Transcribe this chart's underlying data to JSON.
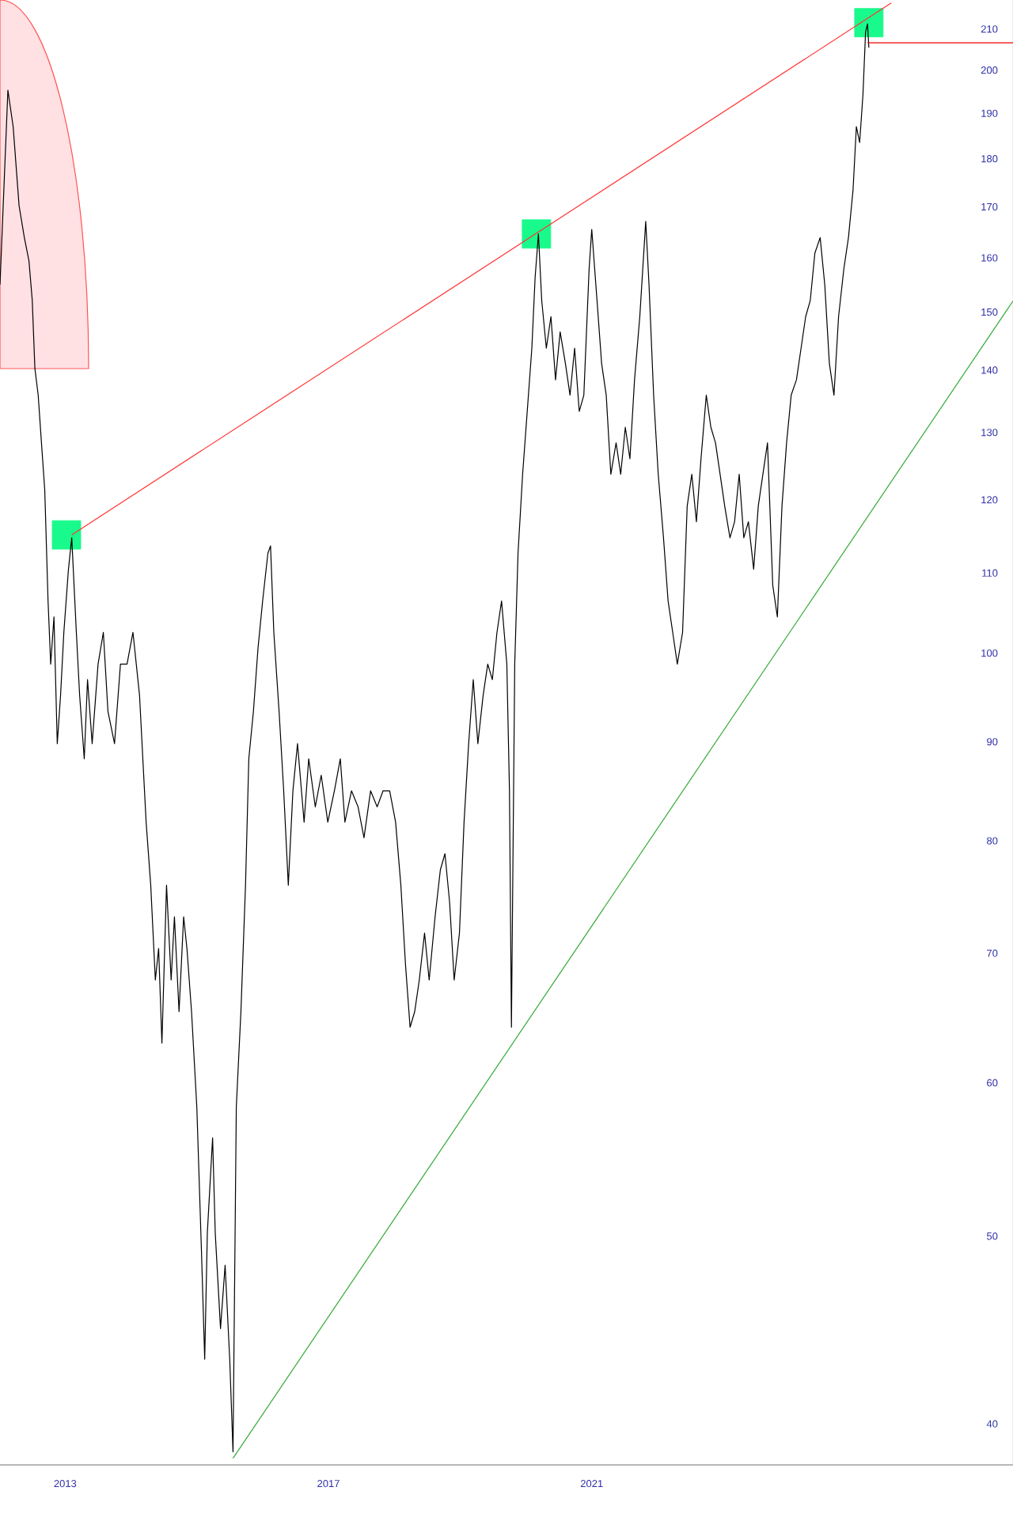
{
  "chart_data": {
    "type": "line",
    "log": "y",
    "xlim": [
      2012.01,
      2027.4
    ],
    "ylim": [
      38.1,
      217.4
    ],
    "xticks": [
      2013,
      2017,
      2021
    ],
    "yticks": [
      40,
      50,
      60,
      70,
      80,
      90,
      100,
      110,
      120,
      130,
      140,
      150,
      160,
      170,
      180,
      190,
      200,
      210
    ],
    "series": [
      {
        "color": "#000000",
        "x": [
          2012.01,
          2012.13,
          2012.21,
          2012.3,
          2012.38,
          2012.45,
          2012.5,
          2012.54,
          2012.59,
          2012.64,
          2012.69,
          2012.74,
          2012.78,
          2012.83,
          2012.88,
          2012.93,
          2012.98,
          2013.05,
          2013.1,
          2013.17,
          2013.22,
          2013.29,
          2013.34,
          2013.41,
          2013.5,
          2013.58,
          2013.65,
          2013.75,
          2013.84,
          2013.94,
          2014.03,
          2014.13,
          2014.18,
          2014.23,
          2014.3,
          2014.37,
          2014.42,
          2014.47,
          2014.54,
          2014.61,
          2014.66,
          2014.73,
          2014.8,
          2014.85,
          2014.92,
          2015.0,
          2015.07,
          2015.12,
          2015.16,
          2015.24,
          2015.28,
          2015.36,
          2015.43,
          2015.5,
          2015.55,
          2015.6,
          2015.67,
          2015.74,
          2015.79,
          2015.86,
          2015.93,
          2016.0,
          2016.08,
          2016.12,
          2016.17,
          2016.25,
          2016.32,
          2016.39,
          2016.46,
          2016.53,
          2016.63,
          2016.7,
          2016.8,
          2016.89,
          2016.99,
          2017.09,
          2017.18,
          2017.25,
          2017.35,
          2017.45,
          2017.54,
          2017.64,
          2017.74,
          2017.83,
          2017.93,
          2018.02,
          2018.1,
          2018.17,
          2018.24,
          2018.31,
          2018.38,
          2018.46,
          2018.53,
          2018.62,
          2018.7,
          2018.77,
          2018.84,
          2018.91,
          2018.99,
          2019.06,
          2019.13,
          2019.2,
          2019.27,
          2019.35,
          2019.42,
          2019.49,
          2019.56,
          2019.63,
          2019.71,
          2019.75,
          2019.78,
          2019.83,
          2019.88,
          2019.95,
          2020.02,
          2020.09,
          2020.14,
          2020.19,
          2020.24,
          2020.31,
          2020.38,
          2020.45,
          2020.52,
          2020.6,
          2020.67,
          2020.74,
          2020.81,
          2020.88,
          2020.96,
          2021.0,
          2021.08,
          2021.15,
          2021.22,
          2021.29,
          2021.37,
          2021.44,
          2021.51,
          2021.58,
          2021.65,
          2021.73,
          2021.82,
          2021.87,
          2021.94,
          2022.01,
          2022.09,
          2022.16,
          2022.23,
          2022.3,
          2022.38,
          2022.45,
          2022.52,
          2022.59,
          2022.66,
          2022.74,
          2022.81,
          2022.88,
          2022.95,
          2023.02,
          2023.1,
          2023.17,
          2023.24,
          2023.31,
          2023.38,
          2023.46,
          2023.53,
          2023.6,
          2023.67,
          2023.75,
          2023.82,
          2023.89,
          2023.96,
          2024.03,
          2024.11,
          2024.18,
          2024.25,
          2024.32,
          2024.39,
          2024.47,
          2024.54,
          2024.61,
          2024.68,
          2024.75,
          2024.83,
          2024.9,
          2024.97,
          2025.02,
          2025.07,
          2025.12,
          2025.16,
          2025.19,
          2025.21
        ],
        "values": [
          155.0,
          195.3,
          187.0,
          170.2,
          163.9,
          159.4,
          152.1,
          140.3,
          135.9,
          128.4,
          121.4,
          106.4,
          98.7,
          104.4,
          89.8,
          95.1,
          102.5,
          110.5,
          114.7,
          102.5,
          95.1,
          88.2,
          96.9,
          89.8,
          98.7,
          102.5,
          93.3,
          89.8,
          98.7,
          98.7,
          102.5,
          95.1,
          88.2,
          81.8,
          75.9,
          67.8,
          70.4,
          62.9,
          75.9,
          67.8,
          73.1,
          65.3,
          73.1,
          70.4,
          65.3,
          58.3,
          49.2,
          43.2,
          50.2,
          56.2,
          50.2,
          44.8,
          48.3,
          43.2,
          38.7,
          58.3,
          65.3,
          75.9,
          88.2,
          93.3,
          100.6,
          106.4,
          112.6,
          113.6,
          102.5,
          93.3,
          84.9,
          75.9,
          84.9,
          89.8,
          81.8,
          88.2,
          83.3,
          86.5,
          81.8,
          84.9,
          88.2,
          81.8,
          84.9,
          83.3,
          80.3,
          84.9,
          83.3,
          84.9,
          84.9,
          81.8,
          75.9,
          69.1,
          64.1,
          65.3,
          67.8,
          71.7,
          67.8,
          73.1,
          77.3,
          78.8,
          74.4,
          67.8,
          71.7,
          81.8,
          89.8,
          96.9,
          89.8,
          95.1,
          98.7,
          96.9,
          102.5,
          106.4,
          98.7,
          84.9,
          64.1,
          98.7,
          112.6,
          123.7,
          133.3,
          143.7,
          156.4,
          164.6,
          152.1,
          143.7,
          149.2,
          138.4,
          146.5,
          141.1,
          135.9,
          143.7,
          133.3,
          135.9,
          157.9,
          165.5,
          152.1,
          141.1,
          135.9,
          123.7,
          128.4,
          123.7,
          130.8,
          126.0,
          138.4,
          149.2,
          167.1,
          155.0,
          135.9,
          123.7,
          114.7,
          106.4,
          102.5,
          98.7,
          102.5,
          119.1,
          123.7,
          116.9,
          126.0,
          135.9,
          130.8,
          128.4,
          123.7,
          119.1,
          114.7,
          116.9,
          123.7,
          114.7,
          116.9,
          110.5,
          119.1,
          123.7,
          128.4,
          108.4,
          104.4,
          119.1,
          128.4,
          135.9,
          138.4,
          143.7,
          149.2,
          152.1,
          160.9,
          163.9,
          155.0,
          141.1,
          135.9,
          149.2,
          157.9,
          163.9,
          173.5,
          187.0,
          183.5,
          194.2,
          209.3,
          211.3,
          205.4
        ]
      },
      {
        "color": "#ff3333",
        "x": [
          2013.1,
          2025.55
        ],
        "values": [
          115.1,
          216.6
        ]
      },
      {
        "color": "#33aa33",
        "x": [
          2015.55,
          2027.4
        ],
        "values": [
          38.4,
          152.0
        ]
      },
      {
        "color": "#ee0000",
        "x": [
          2025.19,
          2027.4
        ],
        "values": [
          206.6,
          206.6
        ]
      },
      {
        "type": "scatter",
        "marker": "square",
        "color": "#19fa8c",
        "x": [
          2013.02,
          2020.16,
          2025.21
        ],
        "values": [
          115.1,
          164.6,
          211.6
        ]
      }
    ]
  }
}
